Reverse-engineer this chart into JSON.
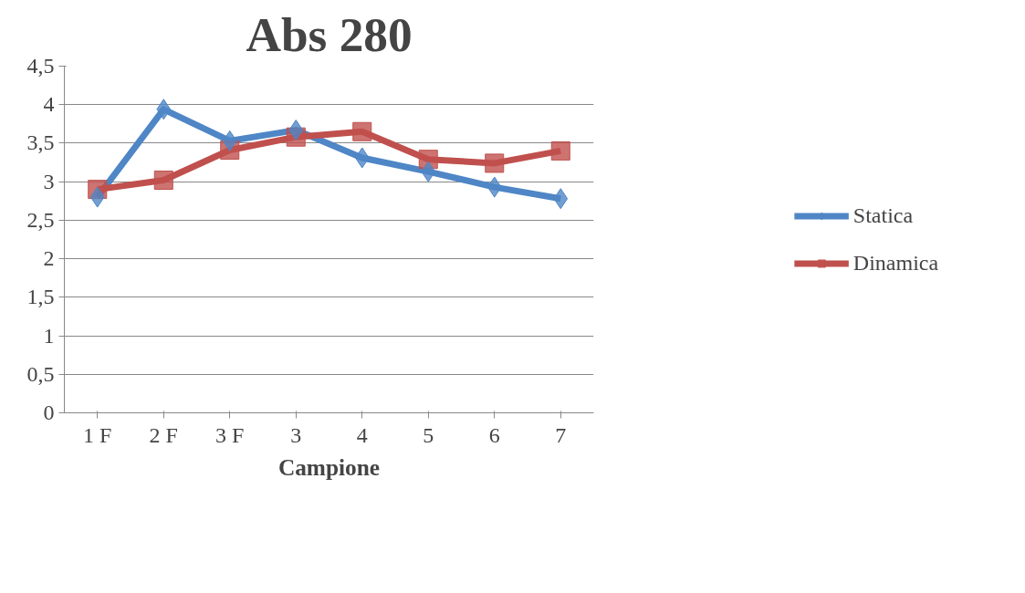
{
  "chart_data": {
    "type": "line",
    "title": "Abs 280",
    "xlabel": "Campione",
    "categories": [
      "1 F",
      "2 F",
      "3 F",
      "3",
      "4",
      "5",
      "6",
      "7"
    ],
    "series": [
      {
        "name": "Statica",
        "color": "#4f86c6",
        "marker": "diamond",
        "values": [
          2.8,
          3.94,
          3.53,
          3.67,
          3.31,
          3.13,
          2.93,
          2.78
        ]
      },
      {
        "name": "Dinamica",
        "color": "#c0504d",
        "marker": "square",
        "values": [
          2.9,
          3.02,
          3.41,
          3.58,
          3.65,
          3.29,
          3.24,
          3.4
        ]
      }
    ],
    "ylim": [
      0,
      4.5
    ],
    "yticks": [
      {
        "value": 0,
        "label": "0"
      },
      {
        "value": 0.5,
        "label": "0,5"
      },
      {
        "value": 1,
        "label": "1"
      },
      {
        "value": 1.5,
        "label": "1,5"
      },
      {
        "value": 2,
        "label": "2"
      },
      {
        "value": 2.5,
        "label": "2,5"
      },
      {
        "value": 3,
        "label": "3"
      },
      {
        "value": 3.5,
        "label": "3,5"
      },
      {
        "value": 4,
        "label": "4"
      },
      {
        "value": 4.5,
        "label": "4,5"
      }
    ],
    "grid": "y",
    "legend": "right",
    "line_style": "solid"
  }
}
